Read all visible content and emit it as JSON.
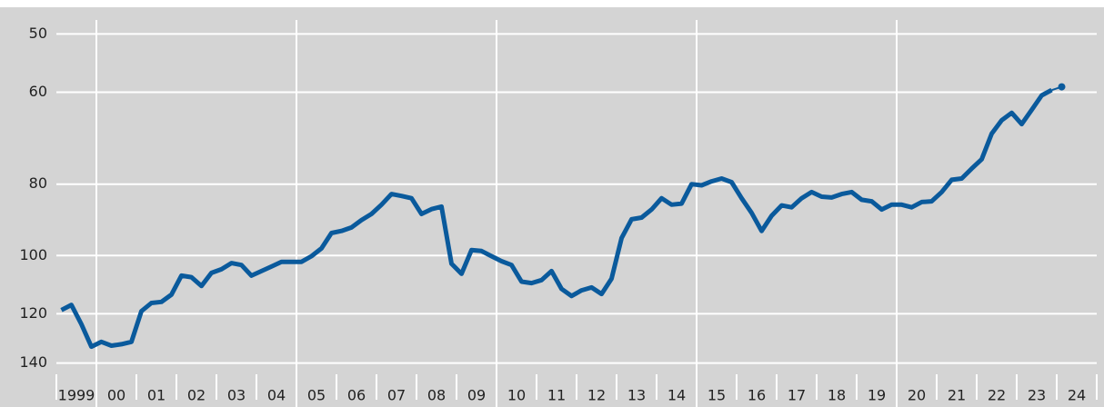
{
  "chart_data": {
    "type": "line",
    "log_scale": true,
    "y_inverted": true,
    "grid": true,
    "xlim": [
      1999,
      2025
    ],
    "ylim": [
      46,
      145
    ],
    "yticks": [
      50,
      60,
      80,
      100,
      120,
      140
    ],
    "xticks": [
      {
        "value": 1999,
        "label": "1999"
      },
      {
        "value": 2000,
        "label": "00"
      },
      {
        "value": 2001,
        "label": "01"
      },
      {
        "value": 2002,
        "label": "02"
      },
      {
        "value": 2003,
        "label": "03"
      },
      {
        "value": 2004,
        "label": "04"
      },
      {
        "value": 2005,
        "label": "05"
      },
      {
        "value": 2006,
        "label": "06"
      },
      {
        "value": 2007,
        "label": "07"
      },
      {
        "value": 2008,
        "label": "08"
      },
      {
        "value": 2009,
        "label": "09"
      },
      {
        "value": 2010,
        "label": "10"
      },
      {
        "value": 2011,
        "label": "11"
      },
      {
        "value": 2012,
        "label": "12"
      },
      {
        "value": 2013,
        "label": "13"
      },
      {
        "value": 2014,
        "label": "14"
      },
      {
        "value": 2015,
        "label": "15"
      },
      {
        "value": 2016,
        "label": "16"
      },
      {
        "value": 2017,
        "label": "17"
      },
      {
        "value": 2018,
        "label": "18"
      },
      {
        "value": 2019,
        "label": "19"
      },
      {
        "value": 2020,
        "label": "20"
      },
      {
        "value": 2021,
        "label": "21"
      },
      {
        "value": 2022,
        "label": "22"
      },
      {
        "value": 2023,
        "label": "23"
      },
      {
        "value": 2024,
        "label": "24"
      }
    ],
    "xgrid": [
      2000,
      2005,
      2010,
      2015,
      2020
    ],
    "color": "#0a5a9c",
    "x": [
      1999.125,
      1999.375,
      1999.625,
      1999.875,
      2000.125,
      2000.375,
      2000.625,
      2000.875,
      2001.125,
      2001.375,
      2001.625,
      2001.875,
      2002.125,
      2002.375,
      2002.625,
      2002.875,
      2003.125,
      2003.375,
      2003.625,
      2003.875,
      2004.125,
      2004.375,
      2004.625,
      2004.875,
      2005.125,
      2005.375,
      2005.625,
      2005.875,
      2006.125,
      2006.375,
      2006.625,
      2006.875,
      2007.125,
      2007.375,
      2007.625,
      2007.875,
      2008.125,
      2008.375,
      2008.625,
      2008.875,
      2009.125,
      2009.375,
      2009.625,
      2009.875,
      2010.125,
      2010.375,
      2010.625,
      2010.875,
      2011.125,
      2011.375,
      2011.625,
      2011.875,
      2012.125,
      2012.375,
      2012.625,
      2012.875,
      2013.125,
      2013.375,
      2013.625,
      2013.875,
      2014.125,
      2014.375,
      2014.625,
      2014.875,
      2015.125,
      2015.375,
      2015.625,
      2015.875,
      2016.125,
      2016.375,
      2016.625,
      2016.875,
      2017.125,
      2017.375,
      2017.625,
      2017.875,
      2018.125,
      2018.375,
      2018.625,
      2018.875,
      2019.125,
      2019.375,
      2019.625,
      2019.875,
      2020.125,
      2020.375,
      2020.625,
      2020.875,
      2021.125,
      2021.375,
      2021.625,
      2021.875,
      2022.125,
      2022.375,
      2022.625,
      2022.875,
      2023.125,
      2023.375,
      2023.625,
      2023.875,
      2024.125
    ],
    "values": [
      118.6,
      116.7,
      124,
      133,
      131,
      132.6,
      132,
      131,
      119,
      116,
      115.6,
      113,
      106.5,
      107,
      110,
      105.6,
      104.4,
      102.4,
      103,
      106.5,
      105,
      103.5,
      102,
      102,
      102,
      100.2,
      97.8,
      93.2,
      92.6,
      91.6,
      89.5,
      87.8,
      85.3,
      82.5,
      83,
      83.6,
      87.8,
      86.5,
      85.8,
      102.6,
      105.9,
      98.3,
      98.6,
      100.2,
      101.8,
      103,
      108.5,
      109,
      108,
      105,
      111,
      113.5,
      111.5,
      110.5,
      112.8,
      107.5,
      94.7,
      89.3,
      88.8,
      86.6,
      83.6,
      85.3,
      85,
      80,
      80.3,
      79.3,
      78.6,
      79.5,
      83.6,
      87.5,
      92.6,
      88.3,
      85.5,
      86,
      83.6,
      82,
      83.2,
      83.4,
      82.5,
      82,
      84,
      84.4,
      86.6,
      85.3,
      85.3,
      86,
      84.6,
      84.4,
      82,
      78.9,
      78.6,
      76.2,
      74,
      68.3,
      65.5,
      64,
      66.3,
      63.4,
      60.6,
      59.6,
      59
    ]
  }
}
